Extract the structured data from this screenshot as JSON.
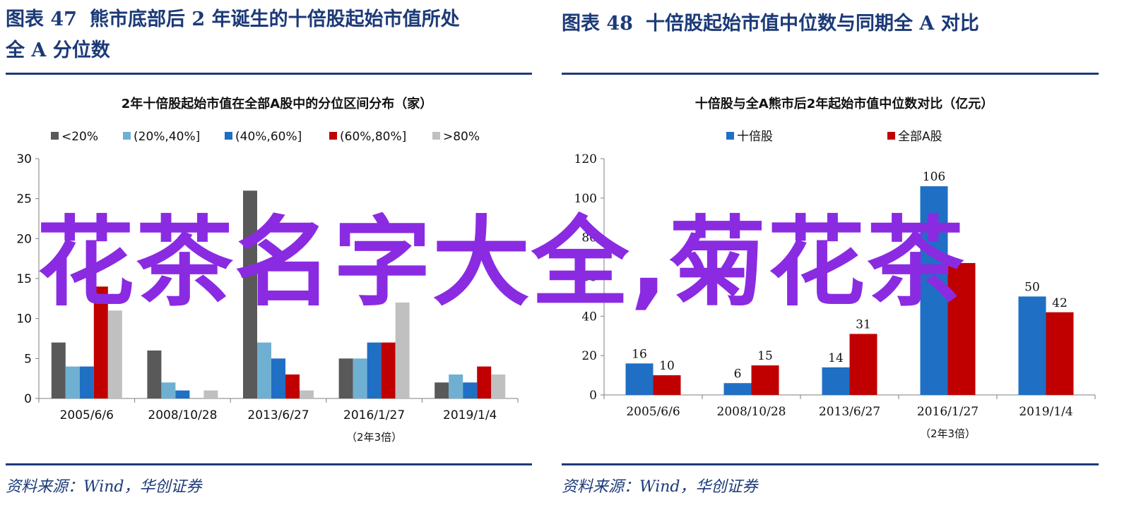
{
  "left": {
    "fig_no": "图表 47",
    "fig_title_line1": "熊市底部后 2 年诞生的十倍股起始市值所处",
    "fig_title_line2": "全 A 分位数",
    "source": "资料来源：Wind，华创证券"
  },
  "right": {
    "fig_no": "图表 48",
    "fig_title": "十倍股起始市值中位数与同期全 A 对比",
    "source": "资料来源：Wind，华创证券"
  },
  "watermark": "花茶名字大全,菊花茶",
  "chart_data": [
    {
      "type": "bar",
      "title": "2年十倍股起始市值在全部A股中的分位区间分布（家）",
      "categories": [
        "2005/6/6",
        "2008/10/28",
        "2013/6/27",
        "2016/1/27",
        "2019/1/4"
      ],
      "category_note": "（2年3倍）",
      "category_note_index": 3,
      "series": [
        {
          "name": "<20%",
          "color": "#595959",
          "values": [
            7,
            6,
            26,
            5,
            2
          ]
        },
        {
          "name": "(20%,40%]",
          "color": "#6fb0d2",
          "values": [
            4,
            2,
            7,
            5,
            3
          ]
        },
        {
          "name": "(40%,60%]",
          "color": "#1f6fc5",
          "values": [
            4,
            1,
            5,
            7,
            2
          ]
        },
        {
          "name": "(60%,80%]",
          "color": "#c00000",
          "values": [
            14,
            0,
            3,
            7,
            4
          ]
        },
        {
          "name": ">80%",
          "color": "#c0c0c0",
          "values": [
            11,
            1,
            1,
            12,
            3
          ]
        }
      ],
      "yticks": [
        "0",
        "5",
        "10",
        "15",
        "20",
        "25",
        "30"
      ],
      "ylim": [
        0,
        30
      ],
      "legend": "top",
      "grid": false
    },
    {
      "type": "bar",
      "title": "十倍股与全A熊市后2年起始市值中位数对比（亿元）",
      "categories": [
        "2005/6/6",
        "2008/10/28",
        "2013/6/27",
        "2016/1/27",
        "2019/1/4"
      ],
      "category_note": "（2年3倍）",
      "category_note_index": 3,
      "series": [
        {
          "name": "十倍股",
          "color": "#1f6fc5",
          "values": [
            16,
            6,
            14,
            106,
            50
          ],
          "labels": [
            "16",
            "6",
            "14",
            "106",
            "50"
          ]
        },
        {
          "name": "全部A股",
          "color": "#c00000",
          "values": [
            10,
            15,
            31,
            67,
            42
          ],
          "labels": [
            "10",
            "15",
            "31",
            "",
            "42"
          ]
        }
      ],
      "yticks": [
        "0",
        "20",
        "40",
        "60",
        "80",
        "100",
        "120"
      ],
      "ylim": [
        0,
        120
      ],
      "legend": "top",
      "grid": false
    }
  ]
}
